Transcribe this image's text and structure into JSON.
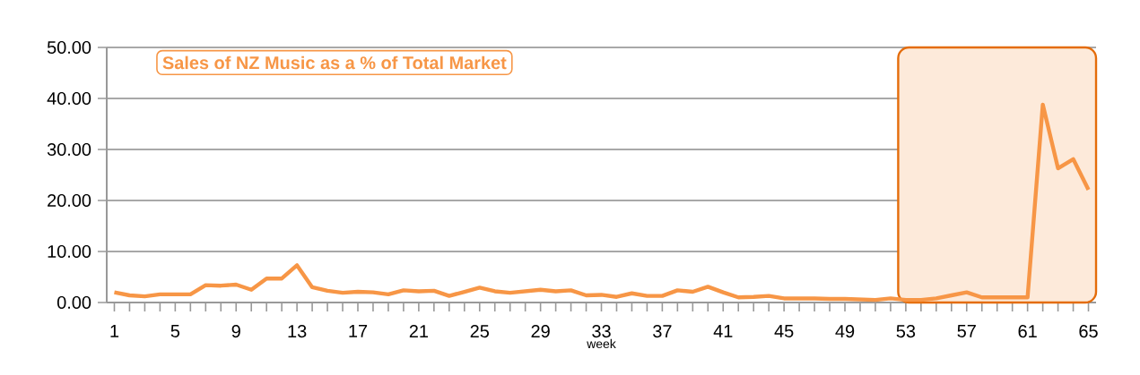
{
  "chart_data": {
    "type": "line",
    "title": "Sales of NZ Music as a % of Total Market",
    "xlabel": "week",
    "x": [
      1,
      2,
      3,
      4,
      5,
      6,
      7,
      8,
      9,
      10,
      11,
      12,
      13,
      14,
      15,
      16,
      17,
      18,
      19,
      20,
      21,
      22,
      23,
      24,
      25,
      26,
      27,
      28,
      29,
      30,
      31,
      32,
      33,
      34,
      35,
      36,
      37,
      38,
      39,
      40,
      41,
      42,
      43,
      44,
      45,
      46,
      47,
      48,
      49,
      50,
      51,
      52,
      53,
      54,
      55,
      56,
      57,
      58,
      59,
      60,
      61,
      62,
      63,
      64,
      65
    ],
    "values": [
      2.0,
      1.4,
      1.2,
      1.6,
      1.6,
      1.6,
      3.4,
      3.3,
      3.5,
      2.5,
      4.7,
      4.7,
      7.3,
      3.0,
      2.3,
      1.9,
      2.1,
      2.0,
      1.6,
      2.4,
      2.2,
      2.3,
      1.3,
      2.1,
      2.9,
      2.2,
      1.9,
      2.2,
      2.5,
      2.2,
      2.4,
      1.4,
      1.5,
      1.1,
      1.8,
      1.3,
      1.3,
      2.4,
      2.1,
      3.1,
      2.0,
      1.0,
      1.1,
      1.3,
      0.8,
      0.8,
      0.8,
      0.7,
      0.7,
      0.6,
      0.5,
      0.8,
      0.5,
      0.5,
      0.8,
      1.4,
      2.0,
      1.0,
      1.0,
      1.0,
      1.0,
      38.8,
      26.3,
      28.1,
      22.1
    ],
    "color": "#f79646",
    "xlim": [
      0.5,
      65.5
    ],
    "xticks": [
      1,
      5,
      9,
      13,
      17,
      21,
      25,
      29,
      33,
      37,
      41,
      45,
      49,
      53,
      57,
      61,
      65
    ],
    "ylim": [
      0,
      50
    ],
    "yticks": [
      {
        "value": 0,
        "label": "0.00"
      },
      {
        "value": 10,
        "label": "10.00"
      },
      {
        "value": 20,
        "label": "20.00"
      },
      {
        "value": 30,
        "label": "30.00"
      },
      {
        "value": 40,
        "label": "40.00"
      },
      {
        "value": 50,
        "label": "50.00"
      }
    ],
    "grid": "y",
    "marker": "none",
    "line_style": "solid",
    "bands": [
      {
        "axis": "x",
        "from": 52.5,
        "to": 65.5,
        "color": "#fdeada"
      }
    ]
  }
}
